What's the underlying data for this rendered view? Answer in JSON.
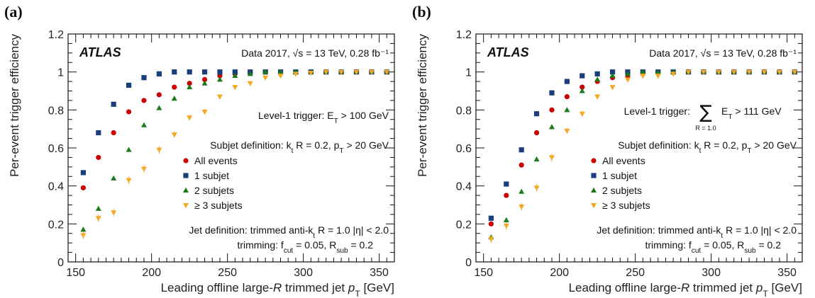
{
  "chart_data": [
    {
      "type": "scatter",
      "panel_label": "(a)",
      "experiment": "ATLAS",
      "data_label": "Data 2017, √s = 13 TeV, 0.28 fb⁻¹",
      "trigger_label": "Level-1 trigger:  E_T > 100 GeV",
      "trigger_sum": false,
      "subjet_definition": "Subjet definition: k_t  R = 0.2,  p_T > 20 GeV",
      "jet_definition": "Jet definition: trimmed anti-k_t  R = 1.0  |η| < 2.0",
      "trimming": "trimming:  f_cut = 0.05,  R_sub = 0.2",
      "xlabel": "Leading offline large-R trimmed jet p_T [GeV]",
      "ylabel": "Per-event trigger efficiency",
      "xlim": [
        145,
        360
      ],
      "ylim": [
        0,
        1.2
      ],
      "xticks": [
        150,
        200,
        250,
        300,
        350
      ],
      "yticks": [
        0,
        0.2,
        0.4,
        0.6,
        0.8,
        1,
        1.2
      ],
      "ytick_labels": [
        "0",
        "0.2",
        "0.4",
        "0.6",
        "0.8",
        "1",
        "1.2"
      ],
      "x": [
        155,
        165,
        175,
        185,
        195,
        205,
        215,
        225,
        235,
        245,
        255,
        265,
        275,
        285,
        295,
        305,
        315,
        325,
        335,
        345,
        355
      ],
      "series": [
        {
          "name": "All events",
          "marker": "circle",
          "color": "#cc0000",
          "values": [
            0.39,
            0.55,
            0.68,
            0.79,
            0.85,
            0.88,
            0.92,
            0.94,
            0.96,
            0.98,
            0.99,
            0.995,
            1.0,
            1.0,
            1.0,
            1.0,
            1.0,
            1.0,
            1.0,
            1.0,
            1.0
          ],
          "errors": [
            0.01,
            0.01,
            0.01,
            0.01,
            0.01,
            0.005,
            0.005,
            0.005,
            0.005,
            0.003,
            0.003,
            0.002,
            0.002,
            0.002,
            0.002,
            0.002,
            0.002,
            0.002,
            0.002,
            0.002,
            0.002
          ]
        },
        {
          "name": "1 subjet",
          "marker": "square",
          "color": "#1a3d7c",
          "values": [
            0.47,
            0.68,
            0.83,
            0.93,
            0.97,
            0.99,
            1.0,
            1.0,
            1.0,
            1.0,
            1.0,
            1.0,
            1.0,
            1.0,
            1.0,
            1.0,
            1.0,
            1.0,
            1.0,
            1.0,
            1.0
          ],
          "errors": [
            0.01,
            0.01,
            0.01,
            0.005,
            0.005,
            0.003,
            0.002,
            0.002,
            0.002,
            0.002,
            0.002,
            0.002,
            0.002,
            0.002,
            0.002,
            0.002,
            0.002,
            0.002,
            0.002,
            0.002,
            0.002
          ]
        },
        {
          "name": "2 subjets",
          "marker": "triangle-up",
          "color": "#1a7a1a",
          "values": [
            0.17,
            0.28,
            0.44,
            0.59,
            0.72,
            0.81,
            0.86,
            0.92,
            0.94,
            0.96,
            0.98,
            0.99,
            1.0,
            1.0,
            1.0,
            1.0,
            1.0,
            1.0,
            1.0,
            1.0,
            1.0
          ],
          "errors": [
            0.01,
            0.01,
            0.01,
            0.01,
            0.01,
            0.01,
            0.01,
            0.005,
            0.005,
            0.005,
            0.003,
            0.003,
            0.002,
            0.002,
            0.002,
            0.002,
            0.002,
            0.002,
            0.002,
            0.002,
            0.002
          ]
        },
        {
          "name": "≥ 3 subjets",
          "marker": "triangle-down",
          "color": "#f5a623",
          "values": [
            0.14,
            0.23,
            0.26,
            0.43,
            0.49,
            0.59,
            0.67,
            0.76,
            0.79,
            0.87,
            0.92,
            0.94,
            0.97,
            0.98,
            0.99,
            0.995,
            1.0,
            1.0,
            1.0,
            1.0,
            1.0
          ],
          "errors": [
            0.02,
            0.02,
            0.02,
            0.02,
            0.02,
            0.02,
            0.015,
            0.015,
            0.015,
            0.01,
            0.01,
            0.01,
            0.005,
            0.005,
            0.005,
            0.003,
            0.002,
            0.002,
            0.002,
            0.002,
            0.002
          ]
        }
      ]
    },
    {
      "type": "scatter",
      "panel_label": "(b)",
      "experiment": "ATLAS",
      "data_label": "Data 2017, √s = 13 TeV, 0.28 fb⁻¹",
      "trigger_label": "Level-1 trigger:",
      "trigger_sum": true,
      "trigger_sum_sub": "R = 1.0",
      "trigger_sum_rest": "E_T > 111 GeV",
      "subjet_definition": "Subjet definition: k_t  R = 0.2,  p_T > 20 GeV",
      "jet_definition": "Jet definition: trimmed anti-k_t  R = 1.0  |η| < 2.0",
      "trimming": "trimming:  f_cut = 0.05,  R_sub = 0.2",
      "xlabel": "Leading offline large-R trimmed jet p_T [GeV]",
      "ylabel": "Per-event trigger efficiency",
      "xlim": [
        145,
        360
      ],
      "ylim": [
        0,
        1.2
      ],
      "xticks": [
        150,
        200,
        250,
        300,
        350
      ],
      "yticks": [
        0,
        0.2,
        0.4,
        0.6,
        0.8,
        1,
        1.2
      ],
      "ytick_labels": [
        "0",
        "0.2",
        "0.4",
        "0.6",
        "0.8",
        "1",
        "1.2"
      ],
      "x": [
        155,
        165,
        175,
        185,
        195,
        205,
        215,
        225,
        235,
        245,
        255,
        265,
        275,
        285,
        295,
        305,
        315,
        325,
        335,
        345,
        355
      ],
      "series": [
        {
          "name": "All events",
          "marker": "circle",
          "color": "#cc0000",
          "values": [
            0.2,
            0.35,
            0.51,
            0.68,
            0.8,
            0.87,
            0.92,
            0.95,
            0.97,
            0.98,
            0.99,
            1.0,
            1.0,
            1.0,
            1.0,
            1.0,
            1.0,
            1.0,
            1.0,
            1.0,
            1.0
          ],
          "errors": [
            0.01,
            0.01,
            0.01,
            0.01,
            0.01,
            0.005,
            0.005,
            0.005,
            0.003,
            0.003,
            0.002,
            0.002,
            0.002,
            0.002,
            0.002,
            0.002,
            0.002,
            0.002,
            0.002,
            0.002,
            0.002
          ]
        },
        {
          "name": "1 subjet",
          "marker": "square",
          "color": "#1a3d7c",
          "values": [
            0.23,
            0.41,
            0.59,
            0.78,
            0.89,
            0.95,
            0.98,
            0.99,
            1.0,
            1.0,
            1.0,
            1.0,
            1.0,
            1.0,
            1.0,
            1.0,
            1.0,
            1.0,
            1.0,
            1.0,
            1.0
          ],
          "errors": [
            0.01,
            0.01,
            0.01,
            0.01,
            0.005,
            0.005,
            0.003,
            0.002,
            0.002,
            0.002,
            0.002,
            0.002,
            0.002,
            0.002,
            0.002,
            0.002,
            0.002,
            0.002,
            0.002,
            0.002,
            0.002
          ]
        },
        {
          "name": "2 subjets",
          "marker": "triangle-up",
          "color": "#1a7a1a",
          "values": [
            0.13,
            0.22,
            0.37,
            0.54,
            0.71,
            0.8,
            0.9,
            0.96,
            0.98,
            0.99,
            1.0,
            1.0,
            1.0,
            1.0,
            1.0,
            1.0,
            1.0,
            1.0,
            1.0,
            1.0,
            1.0
          ],
          "errors": [
            0.01,
            0.01,
            0.01,
            0.01,
            0.01,
            0.01,
            0.005,
            0.005,
            0.003,
            0.003,
            0.002,
            0.002,
            0.002,
            0.002,
            0.002,
            0.002,
            0.002,
            0.002,
            0.002,
            0.002,
            0.002
          ]
        },
        {
          "name": "≥ 3 subjets",
          "marker": "triangle-down",
          "color": "#f5a623",
          "values": [
            0.12,
            0.19,
            0.29,
            0.39,
            0.55,
            0.69,
            0.78,
            0.87,
            0.92,
            0.96,
            0.98,
            0.98,
            0.99,
            1.0,
            1.0,
            1.0,
            1.0,
            1.0,
            1.0,
            1.0,
            1.0
          ],
          "errors": [
            0.02,
            0.02,
            0.02,
            0.02,
            0.02,
            0.015,
            0.015,
            0.01,
            0.01,
            0.01,
            0.005,
            0.005,
            0.005,
            0.003,
            0.002,
            0.002,
            0.002,
            0.002,
            0.002,
            0.002,
            0.002
          ]
        }
      ]
    }
  ]
}
